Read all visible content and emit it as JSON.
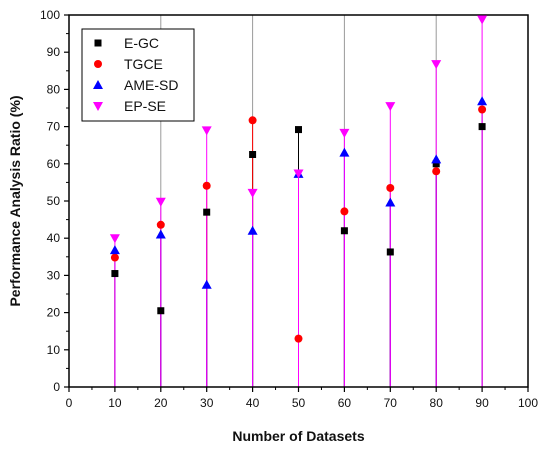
{
  "chart_data": {
    "type": "scatter",
    "title": "",
    "xlabel": "Number of Datasets",
    "ylabel": "Performance Analysis Ratio (%)",
    "xlim": [
      0,
      100
    ],
    "ylim": [
      0,
      100
    ],
    "x_ticks": [
      0,
      10,
      20,
      30,
      40,
      50,
      60,
      70,
      80,
      90,
      100
    ],
    "y_ticks": [
      0,
      10,
      20,
      30,
      40,
      50,
      60,
      70,
      80,
      90,
      100
    ],
    "grid": "vertical lines at x = 20, 40, 60, 80",
    "legend_position": "top-left",
    "drop_lines": "vertical lines from each point down to the x-axis",
    "x": [
      10,
      20,
      30,
      40,
      50,
      60,
      70,
      80,
      90
    ],
    "series": [
      {
        "name": "E-GC",
        "marker": "square",
        "color": "#000000",
        "values": [
          30.5,
          20.5,
          47,
          62.5,
          69.2,
          42,
          36.3,
          60,
          70
        ]
      },
      {
        "name": "TGCE",
        "marker": "circle",
        "color": "#ff0000",
        "values": [
          34.8,
          43.6,
          54.1,
          71.7,
          13,
          47.2,
          53.5,
          58,
          74.6
        ]
      },
      {
        "name": "AME-SD",
        "marker": "triangle-up",
        "color": "#0000ff",
        "values": [
          36.8,
          41,
          27.5,
          42,
          57.3,
          63,
          49.6,
          61.2,
          76.8
        ]
      },
      {
        "name": "EP-SE",
        "marker": "triangle-down",
        "color": "#ff00ff",
        "values": [
          40,
          49.8,
          69,
          52.2,
          57.4,
          68.3,
          75.5,
          86.8,
          98.8
        ]
      }
    ]
  }
}
